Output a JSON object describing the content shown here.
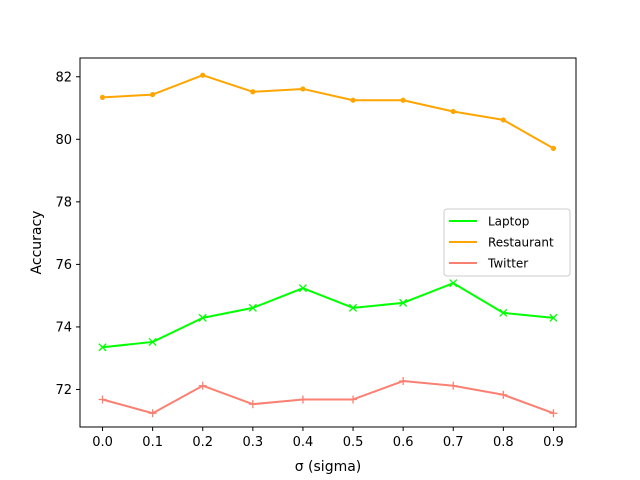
{
  "chart_data": {
    "type": "line",
    "xlabel": "σ (sigma)",
    "ylabel": "Accuracy",
    "xlim": [
      -0.045,
      0.945
    ],
    "ylim": [
      70.8,
      82.6
    ],
    "xticks": [
      "0.0",
      "0.1",
      "0.2",
      "0.3",
      "0.4",
      "0.5",
      "0.6",
      "0.7",
      "0.8",
      "0.9"
    ],
    "yticks": [
      "72",
      "74",
      "76",
      "78",
      "80",
      "82"
    ],
    "x": [
      0.0,
      0.1,
      0.2,
      0.3,
      0.4,
      0.5,
      0.6,
      0.7,
      0.8,
      0.9
    ],
    "grid": false,
    "legend_position": "center-right",
    "series": [
      {
        "name": "Laptop",
        "color": "#00ff00",
        "marker": "x",
        "values": [
          73.35,
          73.52,
          74.29,
          74.61,
          75.24,
          74.61,
          74.77,
          75.4,
          74.45,
          74.29
        ]
      },
      {
        "name": "Restaurant",
        "color": "#ffa500",
        "marker": "dot",
        "values": [
          81.34,
          81.43,
          82.05,
          81.52,
          81.61,
          81.25,
          81.25,
          80.89,
          80.62,
          79.71
        ]
      },
      {
        "name": "Twitter",
        "color": "#fa8072",
        "marker": "plus",
        "values": [
          71.68,
          71.24,
          72.12,
          71.53,
          71.68,
          71.68,
          72.27,
          72.12,
          71.83,
          71.24
        ]
      }
    ]
  }
}
